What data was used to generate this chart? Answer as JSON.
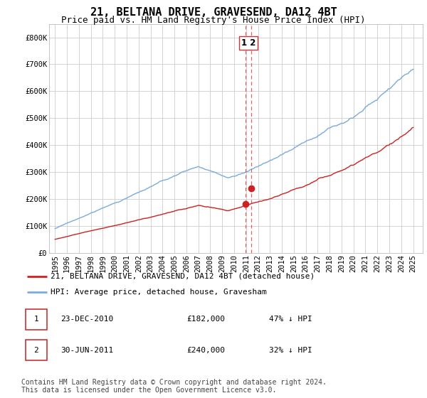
{
  "title": "21, BELTANA DRIVE, GRAVESEND, DA12 4BT",
  "subtitle": "Price paid vs. HM Land Registry's House Price Index (HPI)",
  "ylim": [
    0,
    850000
  ],
  "yticks": [
    0,
    100000,
    200000,
    300000,
    400000,
    500000,
    600000,
    700000,
    800000
  ],
  "ytick_labels": [
    "£0",
    "£100K",
    "£200K",
    "£300K",
    "£400K",
    "£500K",
    "£600K",
    "£700K",
    "£800K"
  ],
  "hpi_color": "#7aabdc",
  "price_color": "#cc2222",
  "vline_color": "#dd4444",
  "background_color": "#ffffff",
  "grid_color": "#cccccc",
  "legend_label_red": "21, BELTANA DRIVE, GRAVESEND, DA12 4BT (detached house)",
  "legend_label_blue": "HPI: Average price, detached house, Gravesham",
  "transaction1_num": "1",
  "transaction1_date": "23-DEC-2010",
  "transaction1_price": "£182,000",
  "transaction1_hpi": "47% ↓ HPI",
  "transaction2_num": "2",
  "transaction2_date": "30-JUN-2011",
  "transaction2_price": "£240,000",
  "transaction2_hpi": "32% ↓ HPI",
  "footer": "Contains HM Land Registry data © Crown copyright and database right 2024.\nThis data is licensed under the Open Government Licence v3.0.",
  "title_fontsize": 11,
  "subtitle_fontsize": 9,
  "axis_fontsize": 7.5,
  "legend_fontsize": 8,
  "table_fontsize": 8,
  "footer_fontsize": 7
}
